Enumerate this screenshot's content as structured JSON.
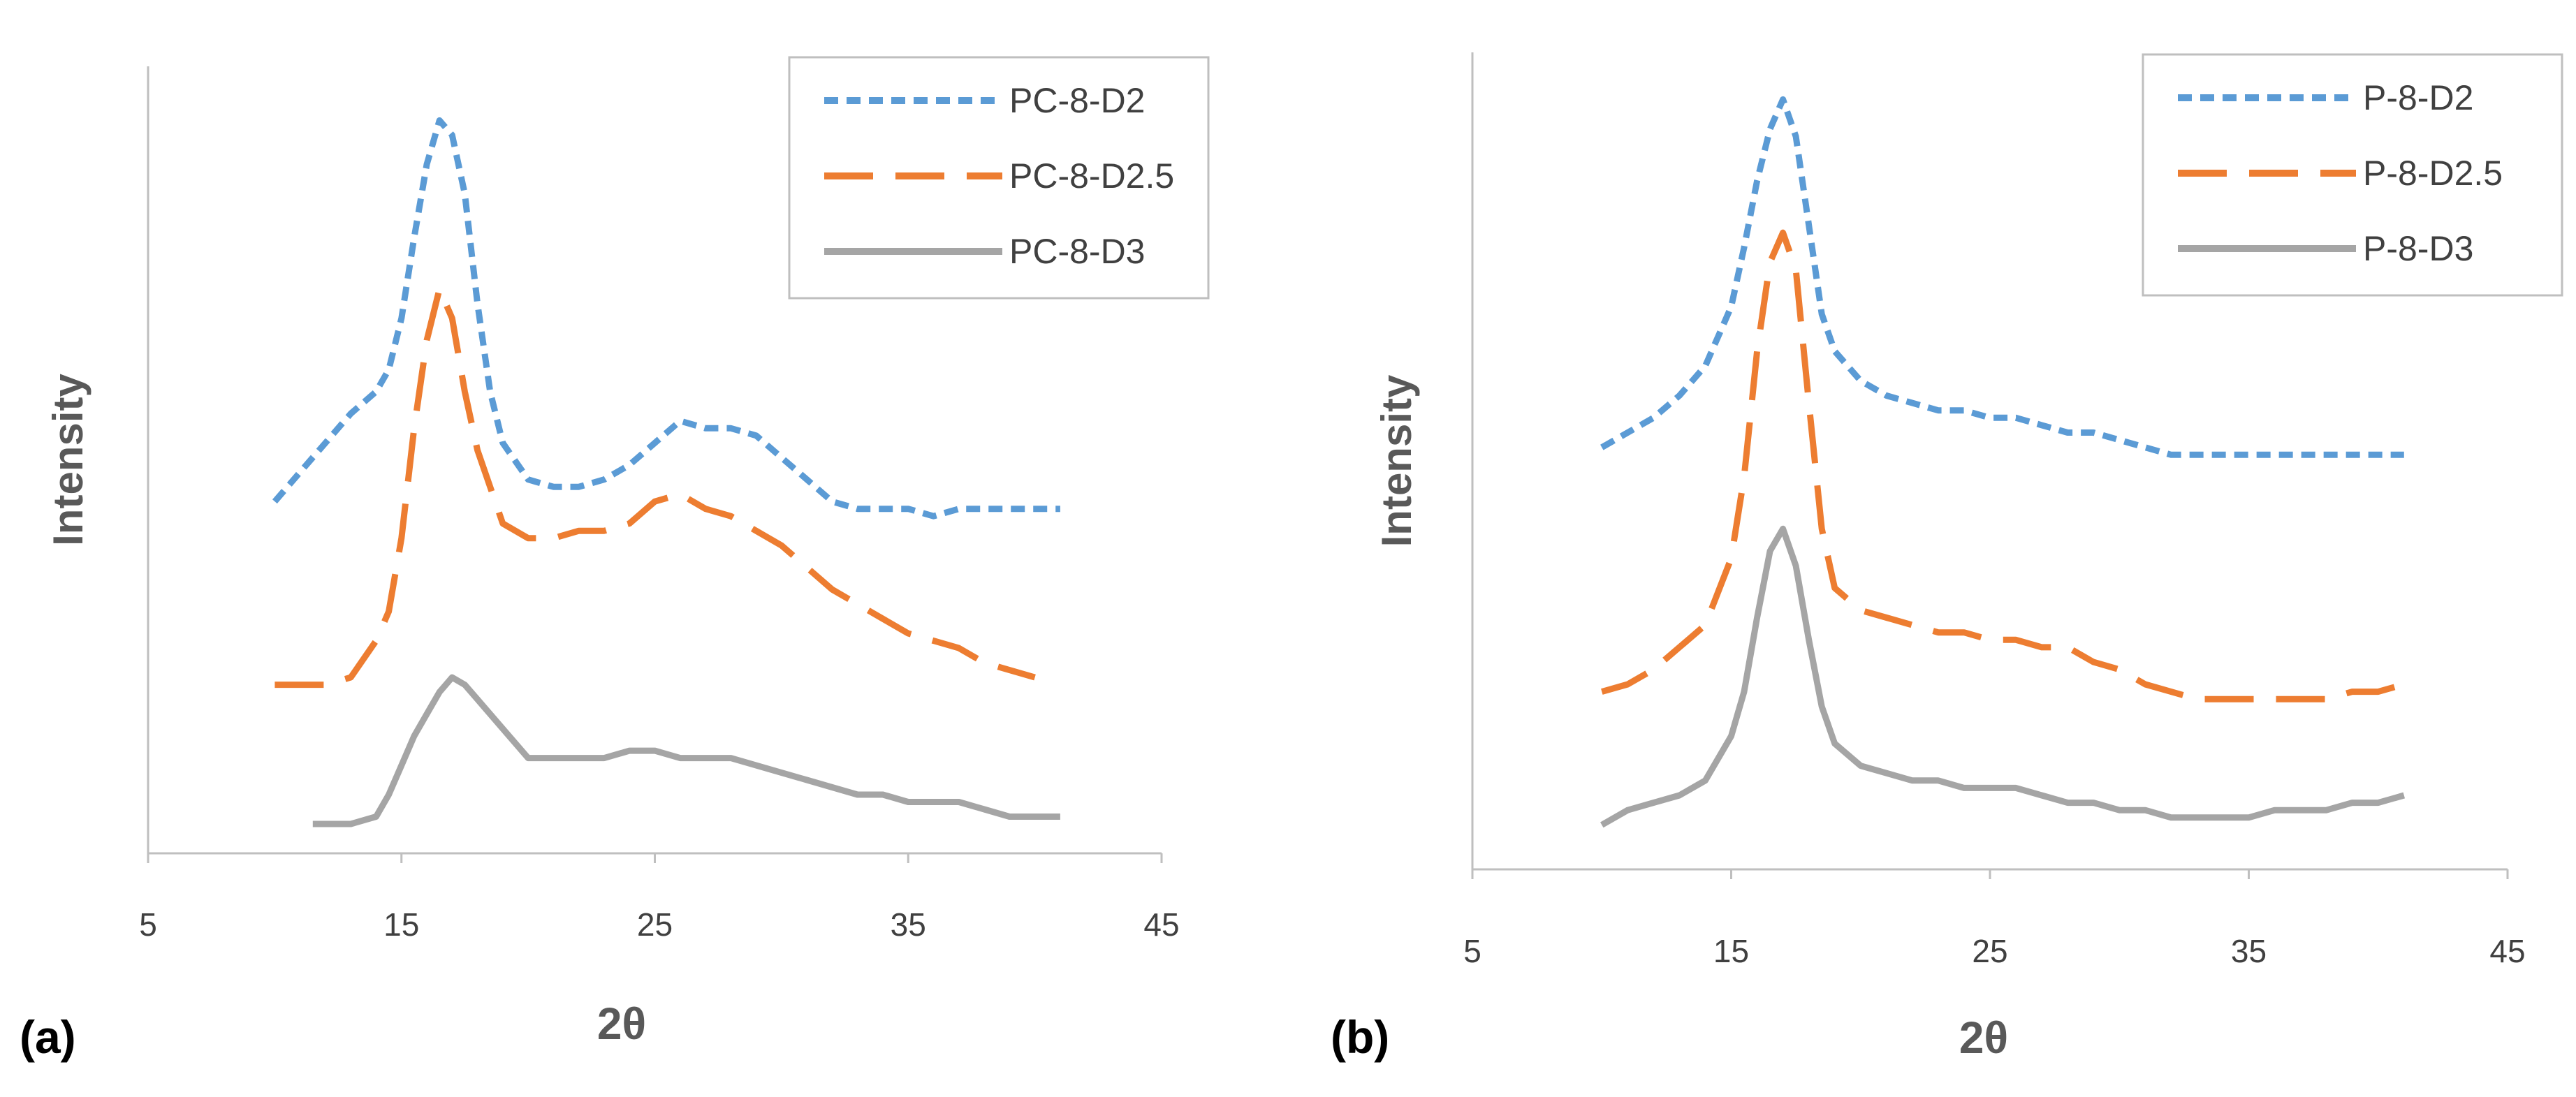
{
  "chart_data": [
    {
      "type": "line",
      "panel_label": "(a)",
      "xlabel": "2θ",
      "ylabel": "Intensity",
      "xlim": [
        5,
        45
      ],
      "xticks": [
        5,
        15,
        25,
        35,
        45
      ],
      "legend_position": "top-right",
      "series": [
        {
          "name": "PC-8-D2",
          "color": "#5B9BD5",
          "style": "short-dash",
          "x": [
            10,
            11,
            12,
            13,
            14,
            14.5,
            15,
            15.5,
            16,
            16.5,
            17,
            17.5,
            18,
            18.5,
            19,
            20,
            21,
            22,
            23,
            24,
            25,
            26,
            27,
            28,
            29,
            30,
            31,
            32,
            33,
            34,
            35,
            36,
            37,
            38,
            39,
            40,
            41
          ],
          "y": [
            48,
            52,
            56,
            60,
            63,
            66,
            73,
            84,
            94,
            100,
            98,
            90,
            75,
            63,
            56,
            51,
            50,
            50,
            51,
            53,
            56,
            59,
            58,
            58,
            57,
            54,
            51,
            48,
            47,
            47,
            47,
            46,
            47,
            47,
            47,
            47,
            47
          ]
        },
        {
          "name": "PC-8-D2.5",
          "color": "#ED7D31",
          "style": "long-dash",
          "x": [
            10,
            11,
            12,
            13,
            14,
            14.5,
            15,
            15.5,
            16,
            16.5,
            17,
            17.5,
            18,
            18.5,
            19,
            20,
            21,
            22,
            23,
            24,
            25,
            26,
            27,
            28,
            29,
            30,
            31,
            32,
            33,
            34,
            35,
            36,
            37,
            38,
            39,
            40
          ],
          "y": [
            23,
            23,
            23,
            24,
            29,
            33,
            43,
            58,
            70,
            77,
            73,
            63,
            55,
            50,
            45,
            43,
            43,
            44,
            44,
            45,
            48,
            49,
            47,
            46,
            44,
            42,
            39,
            36,
            34,
            32,
            30,
            29,
            28,
            26,
            25,
            24
          ]
        },
        {
          "name": "PC-8-D3",
          "color": "#A5A5A5",
          "style": "solid",
          "x": [
            11.5,
            12,
            13,
            14,
            14.5,
            15,
            15.5,
            16,
            16.5,
            17,
            17.5,
            18,
            18.5,
            19,
            20,
            21,
            22,
            23,
            24,
            25,
            26,
            27,
            28,
            29,
            30,
            31,
            32,
            33,
            34,
            35,
            36,
            37,
            38,
            39,
            40,
            41
          ],
          "y": [
            4,
            4,
            4,
            5,
            8,
            12,
            16,
            19,
            22,
            24,
            23,
            21,
            19,
            17,
            13,
            13,
            13,
            13,
            14,
            14,
            13,
            13,
            13,
            12,
            11,
            10,
            9,
            8,
            8,
            7,
            7,
            7,
            6,
            5,
            5,
            5
          ]
        }
      ]
    },
    {
      "type": "line",
      "panel_label": "(b)",
      "xlabel": "2θ",
      "ylabel": "Intensity",
      "xlim": [
        5,
        45
      ],
      "xticks": [
        5,
        15,
        25,
        35,
        45
      ],
      "legend_position": "top-right",
      "series": [
        {
          "name": "P-8-D2",
          "color": "#5B9BD5",
          "style": "short-dash",
          "x": [
            10,
            11,
            12,
            13,
            14,
            15,
            15.5,
            16,
            16.5,
            17,
            17.5,
            18,
            18.5,
            19,
            20,
            21,
            22,
            23,
            24,
            25,
            26,
            27,
            28,
            29,
            30,
            31,
            32,
            33,
            34,
            35,
            36,
            37,
            38,
            39,
            40,
            41
          ],
          "y": [
            57,
            59,
            61,
            64,
            68,
            76,
            84,
            93,
            100,
            104,
            99,
            87,
            75,
            70,
            66,
            64,
            63,
            62,
            62,
            61,
            61,
            60,
            59,
            59,
            58,
            57,
            56,
            56,
            56,
            56,
            56,
            56,
            56,
            56,
            56,
            56
          ]
        },
        {
          "name": "P-8-D2.5",
          "color": "#ED7D31",
          "style": "long-dash",
          "x": [
            10,
            11,
            12,
            13,
            14,
            15,
            15.5,
            16,
            16.5,
            17,
            17.5,
            18,
            18.5,
            19,
            20,
            21,
            22,
            23,
            24,
            25,
            26,
            27,
            28,
            29,
            30,
            31,
            32,
            33,
            34,
            35,
            36,
            37,
            38,
            39,
            40,
            41
          ],
          "y": [
            24,
            25,
            27,
            30,
            33,
            42,
            53,
            70,
            82,
            86,
            81,
            63,
            46,
            38,
            35,
            34,
            33,
            32,
            32,
            31,
            31,
            30,
            30,
            28,
            27,
            25,
            24,
            23,
            23,
            23,
            23,
            23,
            23,
            24,
            24,
            25
          ]
        },
        {
          "name": "P-8-D3",
          "color": "#A5A5A5",
          "style": "solid",
          "x": [
            10,
            11,
            12,
            13,
            14,
            15,
            15.5,
            16,
            16.5,
            17,
            17.5,
            18,
            18.5,
            19,
            20,
            21,
            22,
            23,
            24,
            25,
            26,
            27,
            28,
            29,
            30,
            31,
            32,
            33,
            34,
            35,
            36,
            37,
            38,
            39,
            40,
            41
          ],
          "y": [
            6,
            8,
            9,
            10,
            12,
            18,
            24,
            34,
            43,
            46,
            41,
            31,
            22,
            17,
            14,
            13,
            12,
            12,
            11,
            11,
            11,
            10,
            9,
            9,
            8,
            8,
            7,
            7,
            7,
            7,
            8,
            8,
            8,
            9,
            9,
            10
          ]
        }
      ]
    }
  ]
}
